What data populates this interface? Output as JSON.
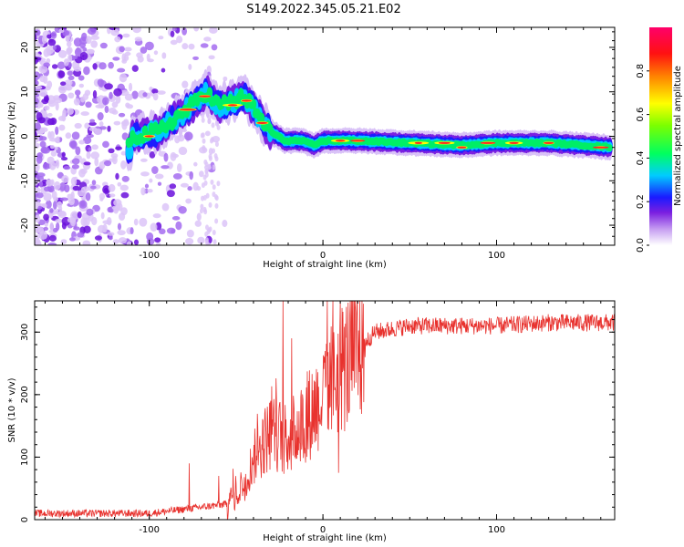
{
  "figure_title": "S149.2022.345.05.21.E02",
  "chart_data": [
    {
      "type": "heatmap",
      "xlabel": "Height of straight line (km)",
      "ylabel": "Frequency (Hz)",
      "xlim": [
        -166,
        168
      ],
      "ylim": [
        -24.5,
        24.5
      ],
      "xticks": [
        -100,
        0,
        100
      ],
      "yticks": [
        -20,
        -10,
        0,
        10,
        20
      ],
      "colorbar": {
        "label": "Normalized spectral amplitude",
        "ticks": [
          0.0,
          0.2,
          0.4,
          0.6,
          0.8
        ],
        "range": [
          0,
          1
        ]
      },
      "ridge": {
        "description_points_km_hz": [
          [
            -110,
            0
          ],
          [
            -95,
            1
          ],
          [
            -85,
            4
          ],
          [
            -75,
            7
          ],
          [
            -68,
            10
          ],
          [
            -60,
            7
          ],
          [
            -50,
            8
          ],
          [
            -45,
            9
          ],
          [
            -38,
            5
          ],
          [
            -30,
            1
          ],
          [
            -22,
            -1
          ],
          [
            -12,
            -1
          ],
          [
            -5,
            -2
          ],
          [
            0,
            -1
          ],
          [
            20,
            -1
          ],
          [
            50,
            -1.5
          ],
          [
            80,
            -2
          ],
          [
            100,
            -1.5
          ],
          [
            130,
            -1.5
          ],
          [
            168,
            -2.5
          ]
        ]
      }
    },
    {
      "type": "line",
      "xlabel": "Height of straight line (km)",
      "ylabel": "SNR (10 * v/v)",
      "xlim": [
        -166,
        168
      ],
      "ylim": [
        0,
        350
      ],
      "xticks": [
        -100,
        0,
        100
      ],
      "yticks": [
        0,
        100,
        200,
        300
      ],
      "color": "#e8322e",
      "trend_km_snr": [
        [
          -166,
          10
        ],
        [
          -100,
          10
        ],
        [
          -70,
          20
        ],
        [
          -55,
          25
        ],
        [
          -45,
          60
        ],
        [
          -38,
          110
        ],
        [
          -30,
          140
        ],
        [
          -20,
          130
        ],
        [
          -10,
          160
        ],
        [
          0,
          200
        ],
        [
          10,
          240
        ],
        [
          20,
          270
        ],
        [
          30,
          300
        ],
        [
          50,
          310
        ],
        [
          100,
          310
        ],
        [
          130,
          315
        ],
        [
          168,
          315
        ]
      ],
      "spikes_km_snr": [
        [
          -77,
          90
        ],
        [
          -60,
          70
        ],
        [
          -23,
          350
        ],
        [
          -18,
          290
        ],
        [
          9,
          75
        ]
      ]
    }
  ]
}
